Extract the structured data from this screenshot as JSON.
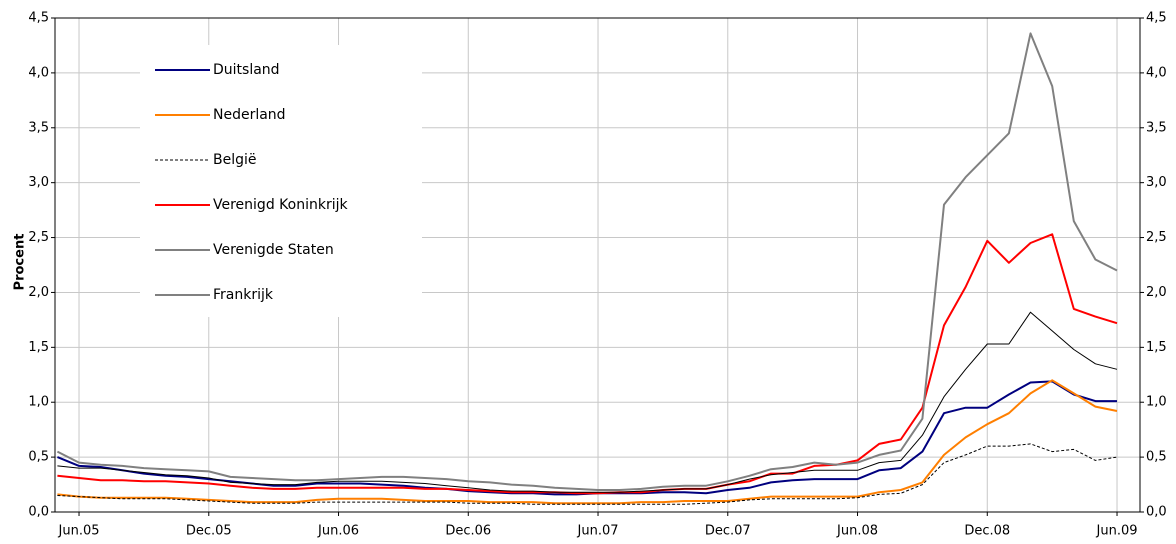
{
  "chart_data": {
    "type": "line",
    "y_label": "Procent",
    "categories": [
      null,
      "Jun.05",
      null,
      null,
      null,
      null,
      null,
      "Dec.05",
      null,
      null,
      null,
      null,
      null,
      "Jun.06",
      null,
      null,
      null,
      null,
      null,
      "Dec.06",
      null,
      null,
      null,
      null,
      null,
      "Jun.07",
      null,
      null,
      null,
      null,
      null,
      "Dec.07",
      null,
      null,
      null,
      null,
      null,
      "Jun.08",
      null,
      null,
      null,
      null,
      null,
      "Dec.08",
      null,
      null,
      null,
      null,
      null,
      "Jun.09"
    ],
    "ylim": [
      0,
      4.5
    ],
    "yticks": [
      {
        "value": 0,
        "label": "0,0"
      },
      {
        "value": 0.5,
        "label": "0,5"
      },
      {
        "value": 1,
        "label": "1,0"
      },
      {
        "value": 1.5,
        "label": "1,5"
      },
      {
        "value": 2,
        "label": "2,0"
      },
      {
        "value": 2.5,
        "label": "2,5"
      },
      {
        "value": 3,
        "label": "3,0"
      },
      {
        "value": 3.5,
        "label": "3,5"
      },
      {
        "value": 4,
        "label": "4,0"
      },
      {
        "value": 4.5,
        "label": "4,5"
      }
    ],
    "grid": true,
    "legend": "upper left",
    "series": [
      {
        "name": "Duitsland",
        "color": "#00007f",
        "line_width": 2,
        "line_style": "solid",
        "values": [
          0.5,
          0.42,
          0.41,
          0.38,
          0.35,
          0.33,
          0.32,
          0.3,
          0.28,
          0.26,
          0.24,
          0.24,
          0.26,
          0.26,
          0.26,
          0.25,
          0.24,
          0.22,
          0.21,
          0.19,
          0.18,
          0.17,
          0.17,
          0.16,
          0.16,
          0.17,
          0.17,
          0.17,
          0.18,
          0.18,
          0.17,
          0.2,
          0.22,
          0.27,
          0.29,
          0.3,
          0.3,
          0.3,
          0.38,
          0.4,
          0.55,
          0.9,
          0.95,
          0.95,
          1.07,
          1.18,
          1.19,
          1.07,
          1.01,
          1.01
        ]
      },
      {
        "name": "Nederland",
        "color": "#ff7f00",
        "line_width": 2,
        "line_style": "solid",
        "values": [
          0.16,
          0.14,
          0.13,
          0.13,
          0.13,
          0.13,
          0.12,
          0.11,
          0.1,
          0.09,
          0.09,
          0.09,
          0.11,
          0.12,
          0.12,
          0.12,
          0.11,
          0.1,
          0.1,
          0.1,
          0.09,
          0.09,
          0.09,
          0.08,
          0.08,
          0.08,
          0.08,
          0.09,
          0.09,
          0.1,
          0.1,
          0.1,
          0.12,
          0.14,
          0.14,
          0.14,
          0.14,
          0.14,
          0.18,
          0.2,
          0.27,
          0.52,
          0.68,
          0.8,
          0.9,
          1.08,
          1.2,
          1.08,
          0.96,
          0.92
        ]
      },
      {
        "name": "België",
        "color": "#000000",
        "line_width": 1,
        "line_style": "dashed",
        "values": [
          0.15,
          0.14,
          0.13,
          0.12,
          0.12,
          0.12,
          0.11,
          0.1,
          0.09,
          0.08,
          0.08,
          0.08,
          0.09,
          0.09,
          0.09,
          0.09,
          0.09,
          0.09,
          0.09,
          0.08,
          0.08,
          0.08,
          0.07,
          0.07,
          0.07,
          0.07,
          0.07,
          0.07,
          0.07,
          0.07,
          0.08,
          0.09,
          0.11,
          0.12,
          0.12,
          0.12,
          0.12,
          0.13,
          0.16,
          0.17,
          0.25,
          0.45,
          0.52,
          0.6,
          0.6,
          0.62,
          0.55,
          0.57,
          0.47,
          0.5
        ]
      },
      {
        "name": "Verenigd Koninkrijk",
        "color": "#ff0000",
        "line_width": 2,
        "line_style": "solid",
        "values": [
          0.33,
          0.31,
          0.29,
          0.29,
          0.28,
          0.28,
          0.27,
          0.26,
          0.24,
          0.22,
          0.21,
          0.21,
          0.22,
          0.22,
          0.22,
          0.22,
          0.22,
          0.21,
          0.21,
          0.2,
          0.19,
          0.18,
          0.18,
          0.18,
          0.17,
          0.17,
          0.18,
          0.18,
          0.2,
          0.21,
          0.21,
          0.25,
          0.28,
          0.35,
          0.35,
          0.42,
          0.43,
          0.47,
          0.62,
          0.66,
          0.95,
          1.7,
          2.05,
          2.47,
          2.27,
          2.45,
          2.53,
          1.85,
          1.78,
          1.72
        ]
      },
      {
        "name": "Verenigde Staten",
        "color": "#808080",
        "line_width": 2,
        "line_style": "solid",
        "values": [
          0.55,
          0.45,
          0.43,
          0.42,
          0.4,
          0.39,
          0.38,
          0.37,
          0.32,
          0.31,
          0.3,
          0.29,
          0.29,
          0.3,
          0.31,
          0.32,
          0.32,
          0.31,
          0.3,
          0.28,
          0.27,
          0.25,
          0.24,
          0.22,
          0.21,
          0.2,
          0.2,
          0.21,
          0.23,
          0.24,
          0.24,
          0.28,
          0.33,
          0.39,
          0.41,
          0.45,
          0.43,
          0.45,
          0.52,
          0.56,
          0.85,
          2.8,
          3.05,
          3.25,
          3.45,
          4.36,
          3.88,
          2.65,
          2.3,
          2.2
        ]
      },
      {
        "name": "Frankrijk",
        "color": "#000000",
        "line_width": 1,
        "line_style": "solid",
        "values": [
          0.42,
          0.4,
          0.4,
          0.38,
          0.36,
          0.34,
          0.33,
          0.31,
          0.27,
          0.26,
          0.25,
          0.25,
          0.27,
          0.28,
          0.28,
          0.28,
          0.27,
          0.26,
          0.24,
          0.22,
          0.2,
          0.19,
          0.19,
          0.18,
          0.18,
          0.18,
          0.18,
          0.19,
          0.2,
          0.21,
          0.21,
          0.25,
          0.3,
          0.34,
          0.36,
          0.38,
          0.38,
          0.38,
          0.45,
          0.47,
          0.7,
          1.05,
          1.3,
          1.53,
          1.53,
          1.82,
          1.65,
          1.48,
          1.35,
          1.3
        ]
      }
    ]
  }
}
